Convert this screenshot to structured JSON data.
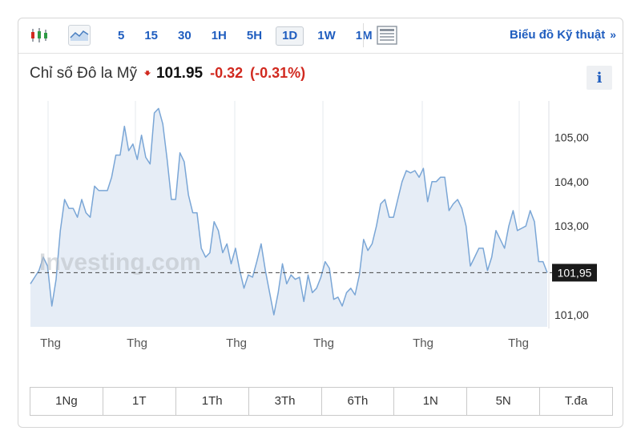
{
  "toolbar": {
    "intervals": [
      "5",
      "15",
      "30",
      "1H",
      "5H",
      "1D",
      "1W",
      "1M"
    ],
    "active_interval": "1D",
    "tech_link": "Biểu đồ Kỹ thuật",
    "tech_link_chevron": "»"
  },
  "header": {
    "title": "Chỉ số Đô la Mỹ",
    "direction": "down",
    "price": "101.95",
    "change": "-0.32",
    "change_pct": "(-0.31%)",
    "info_label": "i"
  },
  "watermark": "Investing.com",
  "ranges": [
    "1Ng",
    "1T",
    "1Th",
    "3Th",
    "6Th",
    "1N",
    "5N",
    "T.đa"
  ],
  "colors": {
    "line": "#7aa6d6",
    "fill": "#e6edf6",
    "negative": "#d1291f",
    "link": "#1f5dbf"
  },
  "chart_data": {
    "type": "area",
    "y_axis_side": "right",
    "yticks": [
      "105,00",
      "104,00",
      "103,00",
      "101,00"
    ],
    "ytick_values": [
      105,
      104,
      103,
      101
    ],
    "ylim": [
      100.73,
      105.73
    ],
    "xticks": [
      "Thg",
      "Thg",
      "Thg",
      "Thg",
      "Thg",
      "Thg"
    ],
    "current_value": 101.95,
    "current_label": "101,95",
    "values": [
      101.7,
      101.85,
      102.0,
      102.3,
      102.1,
      101.2,
      101.8,
      102.9,
      103.6,
      103.4,
      103.4,
      103.2,
      103.6,
      103.3,
      103.2,
      103.9,
      103.8,
      103.8,
      103.8,
      104.1,
      104.6,
      104.6,
      105.25,
      104.7,
      104.85,
      104.5,
      105.05,
      104.55,
      104.4,
      105.55,
      105.65,
      105.3,
      104.5,
      103.6,
      103.6,
      104.65,
      104.45,
      103.7,
      103.3,
      103.3,
      102.5,
      102.3,
      102.4,
      103.1,
      102.9,
      102.4,
      102.6,
      102.15,
      102.5,
      102.0,
      101.6,
      101.9,
      101.85,
      102.2,
      102.6,
      102.0,
      101.5,
      101.0,
      101.5,
      102.15,
      101.7,
      101.9,
      101.8,
      101.85,
      101.3,
      101.9,
      101.5,
      101.6,
      101.85,
      102.2,
      102.05,
      101.35,
      101.4,
      101.2,
      101.5,
      101.6,
      101.45,
      101.9,
      102.7,
      102.45,
      102.6,
      103.0,
      103.5,
      103.6,
      103.2,
      103.2,
      103.6,
      104.0,
      104.25,
      104.2,
      104.25,
      104.1,
      104.3,
      103.55,
      104.0,
      104.0,
      104.1,
      104.1,
      103.35,
      103.5,
      103.6,
      103.4,
      103.0,
      102.1,
      102.3,
      102.5,
      102.5,
      102.0,
      102.3,
      102.9,
      102.7,
      102.5,
      103.0,
      103.35,
      102.9,
      102.95,
      103.0,
      103.35,
      103.1,
      102.2,
      102.2,
      101.95
    ]
  }
}
